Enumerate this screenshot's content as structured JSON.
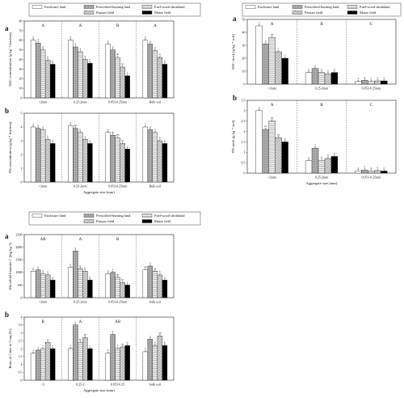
{
  "legend": {
    "entries": [
      "Enclosure land",
      "Prescribed-burning land",
      "Fuel-wood shrubland",
      "Pasture field",
      "Maize field"
    ],
    "colors": [
      "#ffffff",
      "#a6a6a6",
      "#e2e2e2",
      "#8a8a8a",
      "#000000"
    ]
  },
  "chart_data": [
    {
      "type": "bar",
      "panel": "a",
      "categories": [
        ">2mm",
        "0.25-2mm",
        "0.053-0.25mm",
        "Bulk soil"
      ],
      "group_letters": [
        "A",
        "A",
        "B",
        "A"
      ],
      "ylabel": "SOC concentration (g kg⁻¹ fraction)",
      "xlabel": "",
      "ylim": [
        0,
        80
      ],
      "yticks": [
        0,
        10,
        20,
        30,
        40,
        50,
        60,
        70,
        80
      ],
      "series": [
        {
          "name": "Enclosure land",
          "values": [
            60,
            60,
            56,
            60
          ]
        },
        {
          "name": "Prescribed-burning land",
          "values": [
            57,
            53,
            50,
            56
          ]
        },
        {
          "name": "Fuel-wood shrubland",
          "values": [
            50,
            48,
            42,
            49
          ]
        },
        {
          "name": "Pasture field",
          "values": [
            39,
            40,
            32,
            42
          ]
        },
        {
          "name": "Maize field",
          "values": [
            35,
            36,
            23,
            35
          ]
        }
      ],
      "sig_letters": [
        [
          "a",
          "a",
          "a",
          "b",
          "b"
        ],
        [
          "a",
          "a",
          "a",
          "b",
          "b"
        ],
        [
          "a",
          "a",
          "ab",
          "bc",
          "c"
        ],
        [
          "a",
          "a",
          "a",
          "b",
          "b"
        ]
      ]
    },
    {
      "type": "bar",
      "panel": "b",
      "categories": [
        ">2mm",
        "0.25-2mm",
        "0.053-0.25mm",
        "Bulk soil"
      ],
      "group_letters": [
        "",
        "",
        "",
        ""
      ],
      "ylabel": "TN concentration (g kg⁻¹ fraction)",
      "xlabel": "Aggregate size (mm)",
      "ylim": [
        0,
        5
      ],
      "yticks": [
        0,
        1,
        2,
        3,
        4,
        5
      ],
      "series": [
        {
          "name": "Enclosure land",
          "values": [
            4.0,
            4.1,
            3.6,
            4.0
          ]
        },
        {
          "name": "Prescribed-burning land",
          "values": [
            3.9,
            3.9,
            3.4,
            3.8
          ]
        },
        {
          "name": "Fuel-wood shrubland",
          "values": [
            3.8,
            3.6,
            3.2,
            3.6
          ]
        },
        {
          "name": "Pasture field",
          "values": [
            3.1,
            3.1,
            2.8,
            3.0
          ]
        },
        {
          "name": "Maize field",
          "values": [
            2.8,
            2.8,
            2.4,
            2.8
          ]
        }
      ],
      "sig_letters": [
        [
          "a",
          "a",
          "a",
          "b",
          "b"
        ],
        [
          "a",
          "ab",
          "b",
          "c",
          "c"
        ],
        [
          "a",
          "ab",
          "abc",
          "bc",
          "c"
        ],
        [
          "a",
          "a",
          "a",
          "b",
          "b"
        ]
      ]
    },
    {
      "type": "bar",
      "panel": "a",
      "categories": [
        ">2mm",
        "0.25-2mm",
        "0.053-0.25mm"
      ],
      "group_letters": [
        "A",
        "B",
        "C"
      ],
      "ylabel": "SOC stock (g kg⁻¹ soil)",
      "xlabel": "",
      "ylim": [
        0,
        50
      ],
      "yticks": [
        0,
        10,
        20,
        30,
        40,
        50
      ],
      "series": [
        {
          "name": "Enclosure land",
          "values": [
            45,
            9,
            2
          ]
        },
        {
          "name": "Prescribed-burning land",
          "values": [
            31,
            12,
            3
          ]
        },
        {
          "name": "Fuel-wood shrubland",
          "values": [
            36,
            9,
            2
          ]
        },
        {
          "name": "Pasture field",
          "values": [
            25,
            8,
            2.5
          ]
        },
        {
          "name": "Maize field",
          "values": [
            20,
            9,
            2.5
          ]
        }
      ],
      "sig_letters": [
        [
          "a",
          "b",
          "ab",
          "c",
          "c"
        ],
        [
          "a",
          "a",
          "b",
          "b",
          "b"
        ],
        [
          "a",
          "a",
          "a",
          "a",
          "a"
        ]
      ]
    },
    {
      "type": "bar",
      "panel": "b",
      "categories": [
        ">2mm",
        "0.25-2mm",
        "0.053-0.25mm"
      ],
      "group_letters": [
        "A",
        "B",
        "C"
      ],
      "ylabel": "TN stock (g kg⁻¹ soil)",
      "xlabel": "Aggregate size (mm)",
      "ylim": [
        0,
        3.5
      ],
      "yticks": [
        0,
        0.5,
        1,
        1.5,
        2,
        2.5,
        3,
        3.5
      ],
      "series": [
        {
          "name": "Enclosure land",
          "values": [
            3.0,
            0.6,
            0.1
          ]
        },
        {
          "name": "Prescribed-burning land",
          "values": [
            2.1,
            1.2,
            0.15
          ]
        },
        {
          "name": "Fuel-wood shrubland",
          "values": [
            2.5,
            0.6,
            0.1
          ]
        },
        {
          "name": "Pasture field",
          "values": [
            1.7,
            0.7,
            0.12
          ]
        },
        {
          "name": "Maize field",
          "values": [
            1.5,
            0.8,
            0.1
          ]
        }
      ],
      "sig_letters": [
        [
          "a",
          "bc",
          "ab",
          "cd",
          "d"
        ],
        [
          "a",
          "a",
          "b",
          "b",
          "b"
        ],
        [
          "a",
          "a",
          "a",
          "a",
          "a"
        ]
      ]
    },
    {
      "type": "bar",
      "panel": "a",
      "categories": [
        ">2mm",
        "0.25-2mm",
        "0.053-0.25mm",
        "bulk soil"
      ],
      "group_letters": [
        "AB",
        "A",
        "B",
        ""
      ],
      "ylabel": "Microbial biomass C (mg kg⁻¹)",
      "xlabel": "",
      "ylim": [
        0,
        2500
      ],
      "yticks": [
        0,
        500,
        1000,
        1500,
        2000,
        2500
      ],
      "series": [
        {
          "name": "Enclosure land",
          "values": [
            1050,
            1200,
            950,
            1100
          ]
        },
        {
          "name": "Prescribed-burning land",
          "values": [
            1100,
            1850,
            1000,
            1250
          ]
        },
        {
          "name": "Fuel-wood shrubland",
          "values": [
            950,
            1150,
            800,
            1050
          ]
        },
        {
          "name": "Pasture field",
          "values": [
            900,
            1050,
            600,
            900
          ]
        },
        {
          "name": "Maize field",
          "values": [
            700,
            700,
            500,
            700
          ]
        }
      ],
      "sig_letters": [
        [
          "a",
          "a",
          "a",
          "a",
          "a"
        ],
        [
          "b",
          "a",
          "b",
          "b",
          "b"
        ],
        [
          "a",
          "a",
          "ab",
          "bc",
          "c"
        ],
        [
          "ab",
          "a",
          "b",
          "b",
          "c"
        ]
      ]
    },
    {
      "type": "bar",
      "panel": "b",
      "categories": [
        ">2",
        "0.25-2",
        "0.053-0.25",
        "bulk soil"
      ],
      "group_letters": [
        "B",
        "A",
        "AB",
        ""
      ],
      "ylabel": "Ratio of Cmic to Corg (%)",
      "xlabel": "Aggregate size (mm)",
      "ylim": [
        0,
        4
      ],
      "yticks": [
        0,
        0.5,
        1,
        1.5,
        2,
        2.5,
        3,
        3.5,
        4
      ],
      "series": [
        {
          "name": "Enclosure land",
          "values": [
            1.7,
            2.0,
            1.7,
            1.8
          ]
        },
        {
          "name": "Prescribed-burning land",
          "values": [
            1.9,
            3.5,
            2.9,
            2.6
          ]
        },
        {
          "name": "Fuel-wood shrubland",
          "values": [
            2.0,
            2.4,
            2.0,
            2.2
          ]
        },
        {
          "name": "Pasture field",
          "values": [
            2.4,
            2.7,
            2.1,
            2.8
          ]
        },
        {
          "name": "Maize field",
          "values": [
            2.0,
            2.0,
            2.2,
            2.2
          ]
        }
      ],
      "sig_letters": [
        [
          "a",
          "a",
          "a",
          "a",
          "a"
        ],
        [
          "c",
          "a",
          "bc",
          "ab",
          "c"
        ],
        [
          "b",
          "a",
          "b",
          "ab",
          "b"
        ],
        [
          "b",
          "a",
          "b",
          "ab",
          "b"
        ]
      ]
    }
  ]
}
